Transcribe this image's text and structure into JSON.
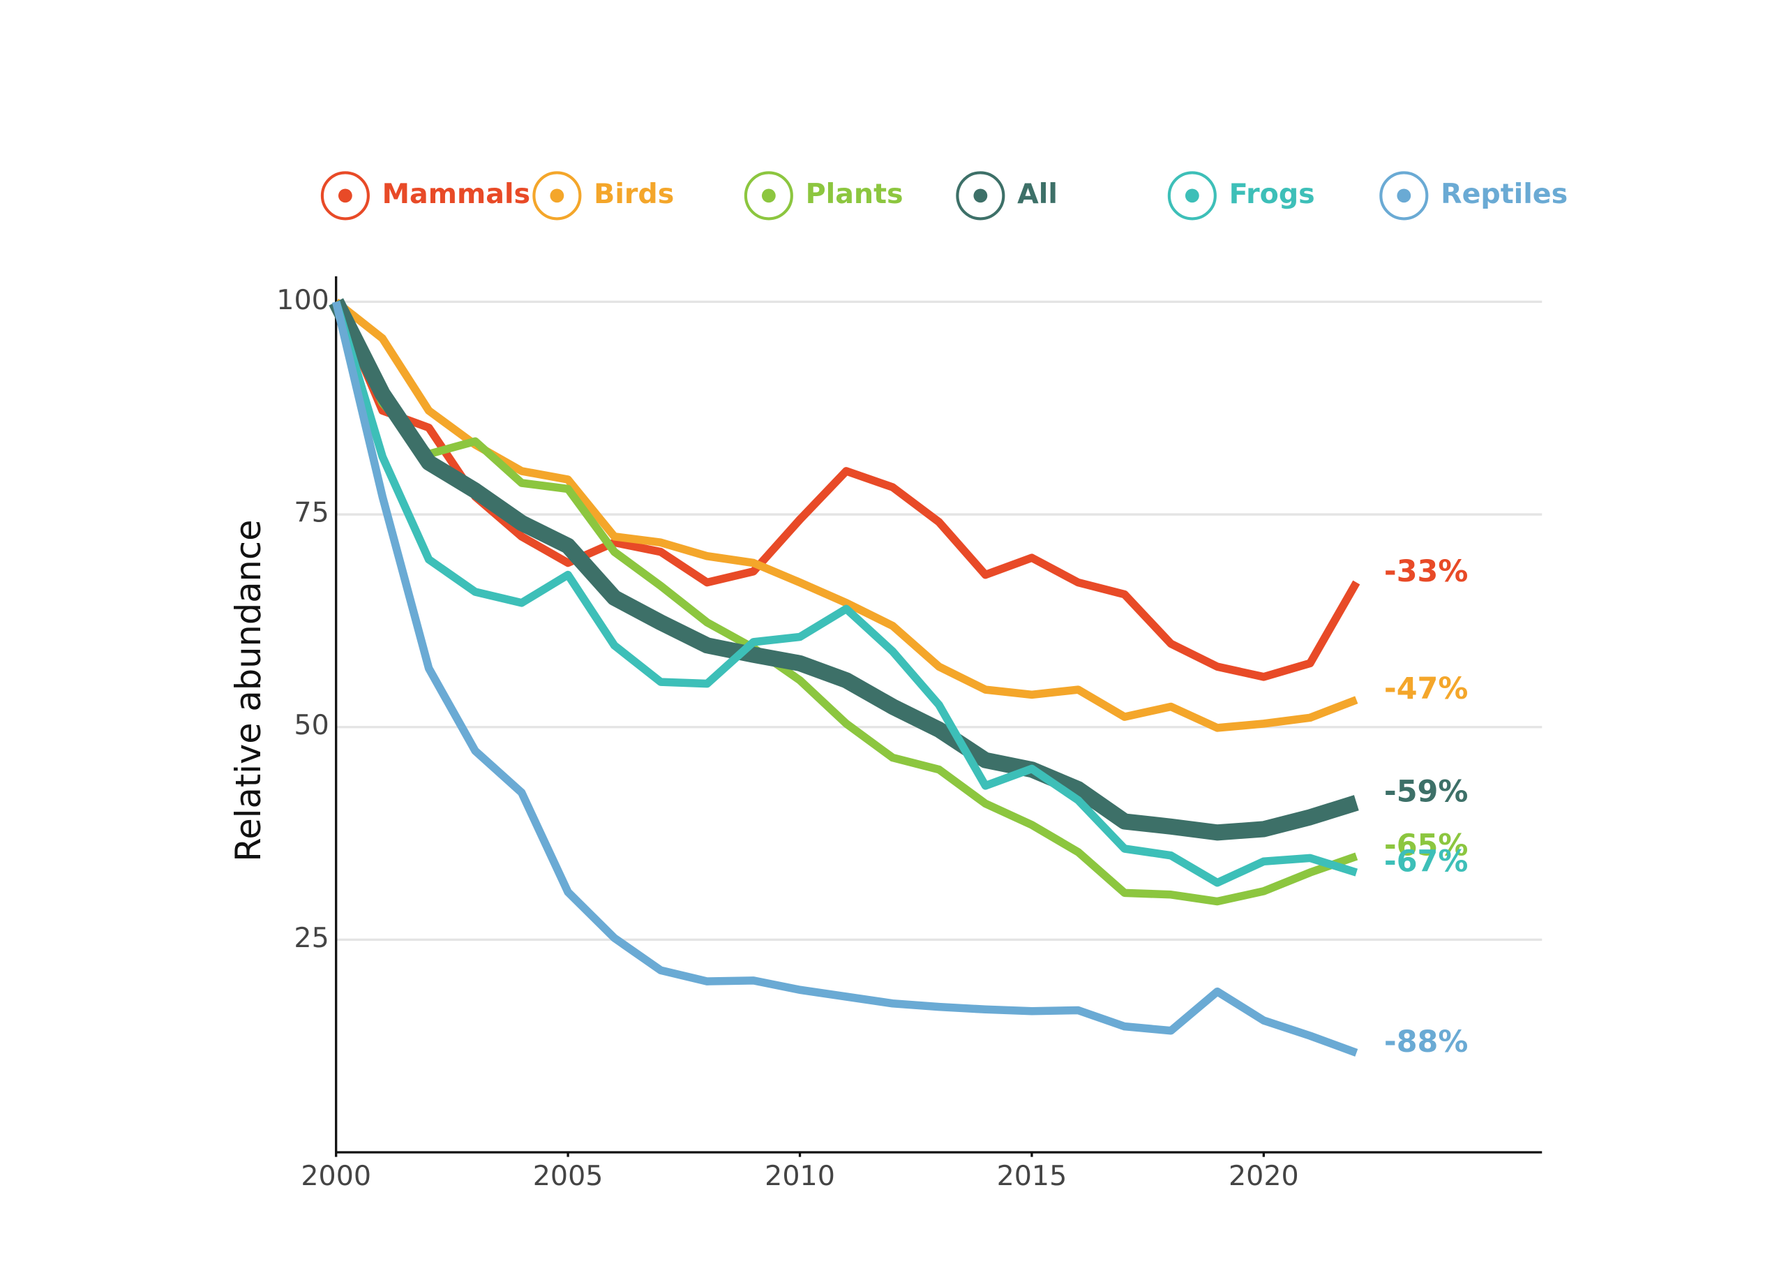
{
  "chart_data": {
    "type": "line",
    "y_label": "Relative abundance",
    "x": [
      2000,
      2001,
      2002,
      2003,
      2004,
      2005,
      2006,
      2007,
      2008,
      2009,
      2010,
      2011,
      2012,
      2013,
      2014,
      2015,
      2016,
      2017,
      2018,
      2019,
      2020,
      2021,
      2022
    ],
    "xlim": [
      2000,
      2026
    ],
    "xticks": [
      2000,
      2005,
      2010,
      2015,
      2020
    ],
    "ylim": [
      0,
      103
    ],
    "yticks": [
      25,
      50,
      75,
      100
    ],
    "grid": true,
    "series": [
      {
        "name": "Mammals",
        "color": "#e84a27",
        "line_width": 7,
        "end_label": "-33%",
        "values": [
          100,
          87.2,
          85.2,
          77.1,
          72.4,
          69.3,
          71.7,
          70.6,
          67,
          68.3,
          74.4,
          80.1,
          78.2,
          74.1,
          67.9,
          69.9,
          67,
          65.6,
          59.8,
          57.1,
          55.9,
          57.5,
          67
        ]
      },
      {
        "name": "Birds",
        "color": "#f4a62a",
        "line_width": 7,
        "end_label": "-47%",
        "values": [
          100,
          95.7,
          87.2,
          83.2,
          80.1,
          79.1,
          72.4,
          71.7,
          70.1,
          69.3,
          67,
          64.6,
          61.9,
          57.1,
          54.4,
          53.8,
          54.4,
          51.2,
          52.4,
          49.9,
          50.4,
          51.1,
          53.2
        ]
      },
      {
        "name": "Plants",
        "color": "#8cc63f",
        "line_width": 7,
        "end_label": "-65%",
        "values": [
          100,
          88.1,
          82.1,
          83.6,
          78.7,
          78,
          70.6,
          66.6,
          62.3,
          59.3,
          55.5,
          50.4,
          46.4,
          45,
          41,
          38.5,
          35.3,
          30.5,
          30.3,
          29.5,
          30.7,
          32.9,
          34.8
        ]
      },
      {
        "name": "All",
        "color": "#3d7068",
        "line_width": 14,
        "end_label": "-59%",
        "values": [
          100,
          89.2,
          81.1,
          77.8,
          74,
          71.3,
          65.2,
          62.3,
          59.6,
          58.5,
          57.5,
          55.5,
          52.4,
          49.7,
          46.1,
          45,
          42.7,
          38.9,
          38.3,
          37.6,
          38,
          39.4,
          41.1
        ]
      },
      {
        "name": "Frogs",
        "color": "#3dbfb8",
        "line_width": 7,
        "end_label": "-67%",
        "values": [
          100,
          81.8,
          69.7,
          65.9,
          64.6,
          67.9,
          59.6,
          55.3,
          55.1,
          60,
          60.6,
          63.9,
          58.9,
          52.6,
          43.1,
          45.1,
          41.4,
          35.7,
          34.9,
          31.7,
          34.2,
          34.6,
          32.9
        ]
      },
      {
        "name": "Reptiles",
        "color": "#6aaad4",
        "line_width": 7,
        "end_label": "-88%",
        "values": [
          100,
          77.1,
          56.9,
          47.2,
          42.3,
          30.6,
          25.2,
          21.4,
          20.1,
          20.2,
          19.1,
          18.3,
          17.5,
          17.1,
          16.8,
          16.6,
          16.7,
          14.8,
          14.3,
          18.9,
          15.5,
          13.7,
          11.7
        ]
      }
    ]
  }
}
